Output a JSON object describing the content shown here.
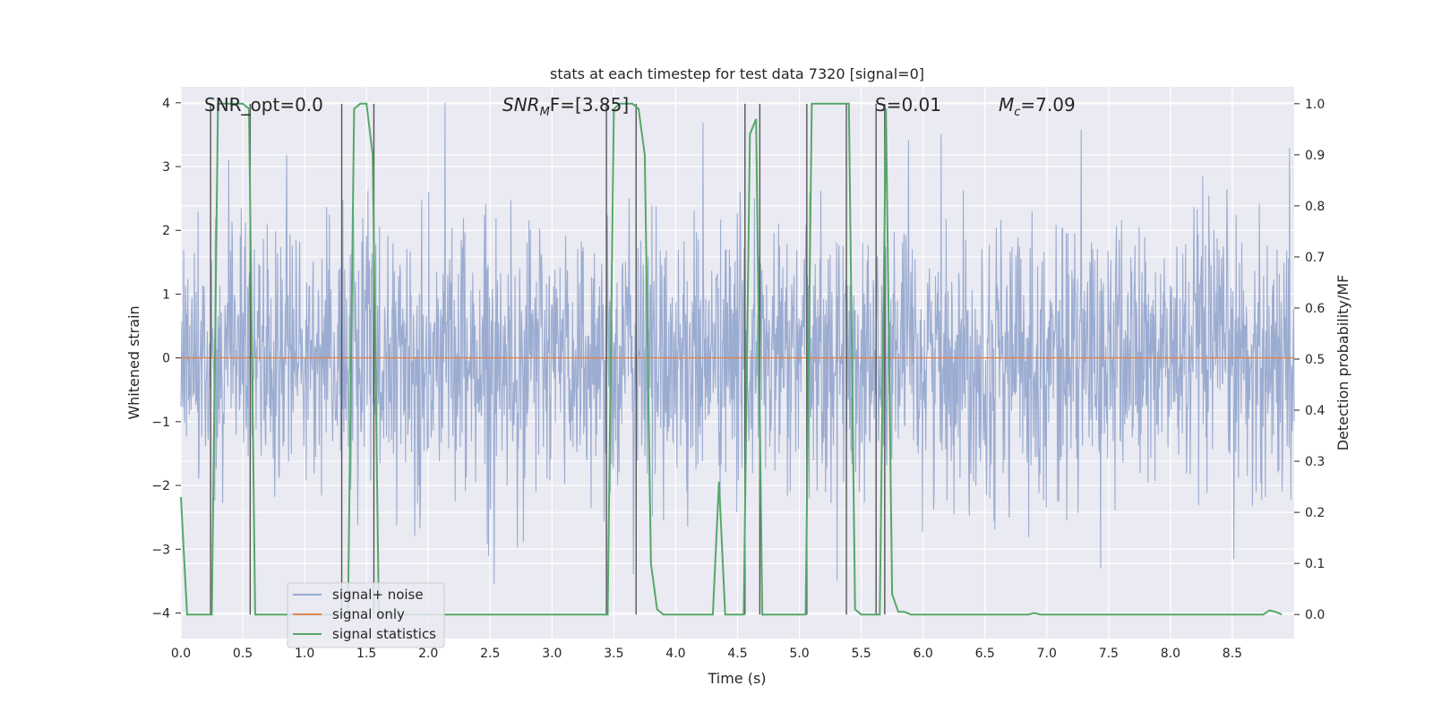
{
  "chart_data": {
    "type": "line",
    "title": "stats at each timestep for test data 7320 [signal=0]",
    "xlabel": "Time (s)",
    "ylabel": "Whitened strain",
    "y2label": "Detection probability/MF",
    "xlim": [
      0.0,
      9.0
    ],
    "ylim": [
      -4.4,
      4.25
    ],
    "y2lim": [
      -0.047,
      1.033
    ],
    "grid": true,
    "legend_position": "lower-left",
    "x_ticks": [
      "0.0",
      "0.5",
      "1.0",
      "1.5",
      "2.0",
      "2.5",
      "3.0",
      "3.5",
      "4.0",
      "4.5",
      "5.0",
      "5.5",
      "6.0",
      "6.5",
      "7.0",
      "7.5",
      "8.0",
      "8.5"
    ],
    "y_ticks": [
      "4",
      "3",
      "2",
      "1",
      "0",
      "−1",
      "−2",
      "−3",
      "−4"
    ],
    "y2_ticks": [
      "1.0",
      "0.9",
      "0.8",
      "0.7",
      "0.6",
      "0.5",
      "0.4",
      "0.3",
      "0.2",
      "0.1",
      "0.0"
    ],
    "annotations": {
      "snr_opt": "SNR_opt=0.0",
      "snr_mf_base": "SNR",
      "snr_mf_sub": "M",
      "snr_mf_rest": "F=[3.85]",
      "s_label": "S=0.01",
      "mc_base": "M",
      "mc_sub": "c",
      "mc_rest": "=7.09"
    },
    "series": [
      {
        "name": "signal+ noise",
        "color": "#97A9CF",
        "axis": "left",
        "description_values": "whitened noise samples, roughly N(0,1), 1 kHz sampled",
        "envelope_range": [
          -4.0,
          4.0
        ]
      },
      {
        "name": "signal only",
        "color": "#DD8452",
        "axis": "left",
        "x": [
          0.0,
          9.0
        ],
        "y": [
          0.0,
          0.0
        ]
      },
      {
        "name": "signal statistics",
        "color": "#55A868",
        "axis": "right",
        "x": [
          0.0,
          0.05,
          0.1,
          0.15,
          0.2,
          0.25,
          0.3,
          0.35,
          0.4,
          0.45,
          0.5,
          0.55,
          0.6,
          0.65,
          0.7,
          0.75,
          0.8,
          0.85,
          0.9,
          0.95,
          1.0,
          1.05,
          1.1,
          1.15,
          1.2,
          1.25,
          1.3,
          1.35,
          1.4,
          1.45,
          1.5,
          1.55,
          1.6,
          1.65,
          1.7,
          1.75,
          1.8,
          3.4,
          3.45,
          3.5,
          3.55,
          3.6,
          3.65,
          3.7,
          3.75,
          3.8,
          3.85,
          3.9,
          3.95,
          4.0,
          4.1,
          4.2,
          4.3,
          4.35,
          4.4,
          4.45,
          4.5,
          4.55,
          4.6,
          4.65,
          4.7,
          4.75,
          4.8,
          4.85,
          4.9,
          4.95,
          5.0,
          5.05,
          5.1,
          5.15,
          5.2,
          5.25,
          5.3,
          5.35,
          5.4,
          5.45,
          5.5,
          5.55,
          5.6,
          5.65,
          5.7,
          5.75,
          5.8,
          5.85,
          5.9,
          5.95,
          6.0,
          6.5,
          6.85,
          6.9,
          6.95,
          7.5,
          8.0,
          8.5,
          8.75,
          8.8,
          8.85,
          8.9
        ],
        "y": [
          0.23,
          0.0,
          0.0,
          0.0,
          0.0,
          0.0,
          1.0,
          1.0,
          1.0,
          1.0,
          1.0,
          0.99,
          0.0,
          0.0,
          0.0,
          0.0,
          0.0,
          0.0,
          0.0,
          0.0,
          0.0,
          0.0,
          0.0,
          0.0,
          0.0,
          0.0,
          0.0,
          0.0,
          0.99,
          1.0,
          1.0,
          0.9,
          0.0,
          0.0,
          0.0,
          0.0,
          0.0,
          0.0,
          0.0,
          0.99,
          1.0,
          1.0,
          1.0,
          0.99,
          0.9,
          0.1,
          0.01,
          0.0,
          0.0,
          0.0,
          0.0,
          0.0,
          0.0,
          0.26,
          0.0,
          0.0,
          0.0,
          0.0,
          0.94,
          0.97,
          0.0,
          0.0,
          0.0,
          0.0,
          0.0,
          0.0,
          0.0,
          0.0,
          1.0,
          1.0,
          1.0,
          1.0,
          1.0,
          1.0,
          1.0,
          0.01,
          0.0,
          0.0,
          0.0,
          0.0,
          0.99,
          0.04,
          0.005,
          0.005,
          0.0,
          0.0,
          0.0,
          0.0,
          0.0,
          0.003,
          0.0,
          0.0,
          0.0,
          0.0,
          0.0,
          0.008,
          0.005,
          0.0
        ]
      }
    ],
    "vertical_lines_x": [
      0.24,
      0.56,
      1.3,
      1.56,
      3.44,
      3.68,
      4.56,
      4.68,
      5.06,
      5.38,
      5.62,
      5.69
    ]
  }
}
